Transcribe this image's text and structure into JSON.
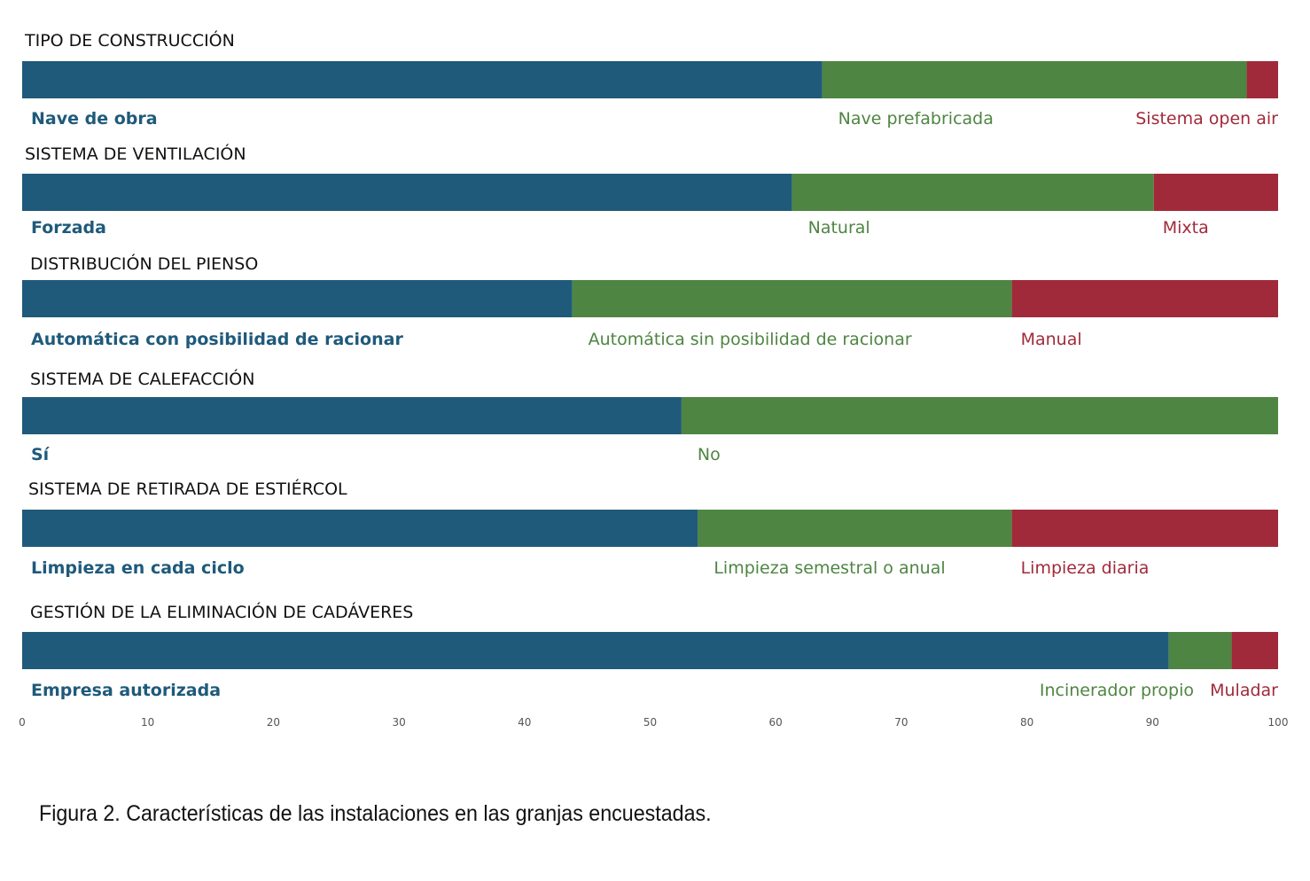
{
  "caption": "Figura 2. Características de las instalaciones en las granjas encuestadas.",
  "chart_data": {
    "type": "bar",
    "orientation": "horizontal",
    "stacked": true,
    "xlim": [
      0,
      100
    ],
    "xticks": [
      0,
      10,
      20,
      30,
      40,
      50,
      60,
      70,
      80,
      90,
      100
    ],
    "grid": false,
    "colors": [
      "#1f5a7b",
      "#4e8542",
      "#a12a3a"
    ],
    "groups": [
      {
        "title": "TIPO DE CONSTRUCCIÓN",
        "segments": [
          {
            "label": "Nave de obra",
            "value": 63.7
          },
          {
            "label": "Nave prefabricada",
            "value": 33.8
          },
          {
            "label": "Sistema open air",
            "value": 2.5
          }
        ]
      },
      {
        "title": "SISTEMA DE VENTILACIÓN",
        "segments": [
          {
            "label": "Forzada",
            "value": 61.3
          },
          {
            "label": "Natural",
            "value": 28.8
          },
          {
            "label": "Mixta",
            "value": 9.9
          }
        ]
      },
      {
        "title": "DISTRIBUCIÓN DEL PIENSO",
        "segments": [
          {
            "label": "Automática con posibilidad de racionar",
            "value": 43.8
          },
          {
            "label": "Automática sin posibilidad de racionar",
            "value": 35.0
          },
          {
            "label": "Manual",
            "value": 21.2
          }
        ]
      },
      {
        "title": "SISTEMA DE CALEFACCIÓN",
        "segments": [
          {
            "label": "Sí",
            "value": 52.5
          },
          {
            "label": "No",
            "value": 47.5
          }
        ]
      },
      {
        "title": "SISTEMA DE RETIRADA DE ESTIÉRCOL",
        "segments": [
          {
            "label": "Limpieza en cada ciclo",
            "value": 53.8
          },
          {
            "label": "Limpieza semestral o anual",
            "value": 25.0
          },
          {
            "label": "Limpieza diaria",
            "value": 21.2
          }
        ]
      },
      {
        "title": "GESTIÓN DE LA ELIMINACIÓN DE CADÁVERES",
        "segments": [
          {
            "label": "Empresa autorizada",
            "value": 91.3
          },
          {
            "label": "Incinerador propio",
            "value": 5.0
          },
          {
            "label": "Muladar",
            "value": 3.7
          }
        ]
      }
    ]
  }
}
